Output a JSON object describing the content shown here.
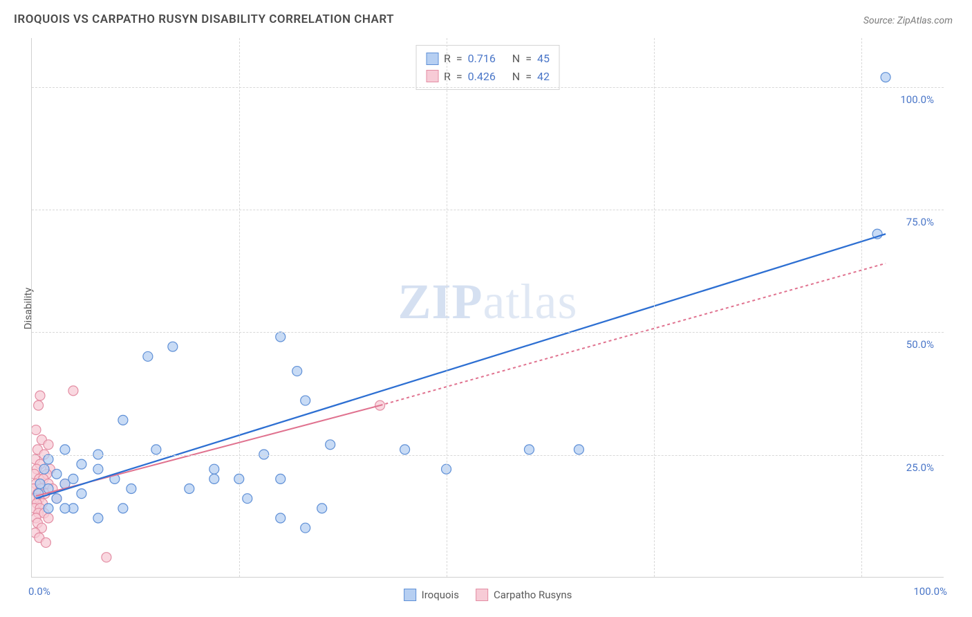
{
  "title": "IROQUOIS VS CARPATHO RUSYN DISABILITY CORRELATION CHART",
  "source": "Source: ZipAtlas.com",
  "ylabel": "Disability",
  "watermark_a": "ZIP",
  "watermark_b": "atlas",
  "chart": {
    "type": "scatter",
    "xlim": [
      0,
      110
    ],
    "ylim": [
      0,
      110
    ],
    "y_ticks": [
      25,
      50,
      75,
      100
    ],
    "y_tick_labels": [
      "25.0%",
      "50.0%",
      "75.0%",
      "100.0%"
    ],
    "x_ticks": [
      0,
      100
    ],
    "x_tick_labels": [
      "0.0%",
      "100.0%"
    ],
    "x_gridlines": [
      25,
      50,
      75,
      100
    ],
    "background_color": "#ffffff",
    "grid_color": "#d8d8d8",
    "tick_color": "#4a76c8",
    "series": [
      {
        "name": "Iroquois",
        "point_fill": "#b6cff2",
        "point_stroke": "#5e8fd6",
        "point_opacity": 0.75,
        "point_radius": 7,
        "line_color": "#2d6fd2",
        "line_width": 2.3,
        "line_dash": "none",
        "trend": {
          "x1": 0.5,
          "y1": 16,
          "x2": 103,
          "y2": 70
        },
        "points": [
          [
            103,
            102
          ],
          [
            102,
            70
          ],
          [
            60,
            26
          ],
          [
            66,
            26
          ],
          [
            45,
            26
          ],
          [
            50,
            22
          ],
          [
            36,
            27
          ],
          [
            30,
            20
          ],
          [
            30,
            49
          ],
          [
            28,
            25
          ],
          [
            33,
            36
          ],
          [
            32,
            42
          ],
          [
            25,
            20
          ],
          [
            35,
            14
          ],
          [
            17,
            47
          ],
          [
            14,
            45
          ],
          [
            11,
            32
          ],
          [
            15,
            26
          ],
          [
            22,
            20
          ],
          [
            22,
            22
          ],
          [
            19,
            18
          ],
          [
            30,
            12
          ],
          [
            33,
            10
          ],
          [
            26,
            16
          ],
          [
            12,
            18
          ],
          [
            10,
            20
          ],
          [
            11,
            14
          ],
          [
            8,
            22
          ],
          [
            8,
            25
          ],
          [
            6,
            23
          ],
          [
            6,
            17
          ],
          [
            5,
            20
          ],
          [
            4,
            26
          ],
          [
            4,
            19
          ],
          [
            3,
            21
          ],
          [
            2,
            24
          ],
          [
            2,
            18
          ],
          [
            1,
            19
          ],
          [
            1.5,
            22
          ],
          [
            0.8,
            17
          ],
          [
            8,
            12
          ],
          [
            5,
            14
          ],
          [
            3,
            16
          ],
          [
            2,
            14
          ],
          [
            4,
            14
          ]
        ],
        "R": "0.716",
        "N": "45"
      },
      {
        "name": "Carpatho Rusyns",
        "point_fill": "#f7cbd6",
        "point_stroke": "#e38da3",
        "point_opacity": 0.75,
        "point_radius": 7,
        "line_color": "#e0728f",
        "line_width": 2.0,
        "line_dash": "4 4",
        "trend_solid": {
          "x1": 0.5,
          "y1": 16.5,
          "x2": 42,
          "y2": 35
        },
        "trend_dash": {
          "x1": 42,
          "y1": 35,
          "x2": 103,
          "y2": 64
        },
        "points": [
          [
            42,
            35
          ],
          [
            1,
            37
          ],
          [
            5,
            38
          ],
          [
            0.8,
            35
          ],
          [
            0.5,
            30
          ],
          [
            1.2,
            28
          ],
          [
            2,
            27
          ],
          [
            0.7,
            26
          ],
          [
            1.5,
            25
          ],
          [
            0.4,
            24
          ],
          [
            1,
            23
          ],
          [
            0.6,
            22
          ],
          [
            2.2,
            22
          ],
          [
            0.3,
            21
          ],
          [
            1.8,
            21
          ],
          [
            0.9,
            20
          ],
          [
            1.4,
            20
          ],
          [
            0.5,
            19
          ],
          [
            2,
            19
          ],
          [
            0.2,
            18
          ],
          [
            1.1,
            18
          ],
          [
            0.7,
            17
          ],
          [
            1.6,
            17
          ],
          [
            0.4,
            16
          ],
          [
            0.9,
            16
          ],
          [
            1.3,
            15
          ],
          [
            0.6,
            15
          ],
          [
            0.3,
            14
          ],
          [
            1,
            14
          ],
          [
            0.8,
            13
          ],
          [
            1.5,
            13
          ],
          [
            0.5,
            12
          ],
          [
            2,
            12
          ],
          [
            0.7,
            11
          ],
          [
            1.2,
            10
          ],
          [
            0.4,
            9
          ],
          [
            0.9,
            8
          ],
          [
            1.7,
            7
          ],
          [
            9,
            4
          ],
          [
            3,
            16
          ],
          [
            2.5,
            18
          ],
          [
            4,
            19
          ]
        ],
        "R": "0.426",
        "N": "42"
      }
    ]
  },
  "stat_labels": {
    "R": "R",
    "N": "N",
    "eq": "="
  }
}
